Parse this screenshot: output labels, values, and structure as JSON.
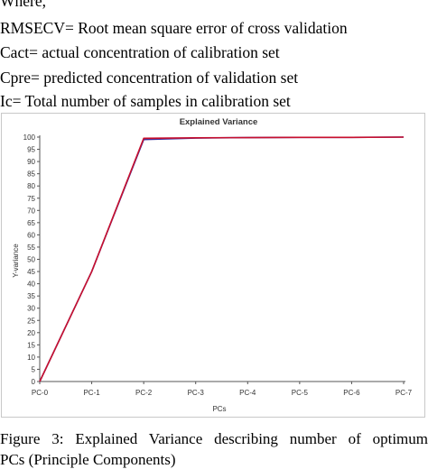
{
  "definitions": {
    "intro": "Where,",
    "items": [
      "RMSECV= Root mean square error of cross validation",
      "Cact= actual concentration of calibration set",
      "Cpre= predicted concentration of validation set",
      "Ic= Total number of samples in calibration set"
    ]
  },
  "chart_data": {
    "type": "line",
    "title": "Explained Variance",
    "xlabel": "PCs",
    "ylabel": "Y-variance",
    "categories": [
      "PC-0",
      "PC-1",
      "PC-2",
      "PC-3",
      "PC-4",
      "PC-5",
      "PC-6",
      "PC-7"
    ],
    "series": [
      {
        "values": [
          0,
          45,
          99.5,
          99.7,
          99.8,
          99.9,
          99.9,
          100
        ],
        "color": "#c8102e"
      },
      {
        "values": [
          0,
          45,
          99,
          99.6,
          99.8,
          99.9,
          99.9,
          100
        ],
        "color": "#3a2a9a"
      }
    ],
    "yticks": [
      0,
      5,
      10,
      15,
      20,
      25,
      30,
      35,
      40,
      45,
      50,
      55,
      60,
      65,
      70,
      75,
      80,
      85,
      90,
      95,
      100
    ],
    "ylim": [
      0,
      100
    ],
    "grid": false,
    "legend": "none"
  },
  "caption": {
    "line1": "Figure 3: Explained Variance describing number of optimum",
    "line2": "PCs (Principle Components)"
  }
}
